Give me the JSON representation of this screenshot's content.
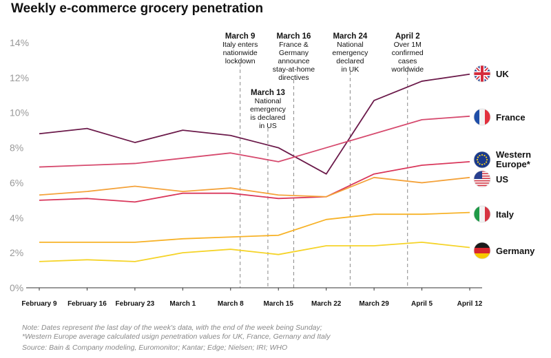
{
  "header": {
    "title": "Weekly e-commerce grocery penetration"
  },
  "colors": {
    "UK": "#6b1a4a",
    "France": "#d64a6e",
    "Western Europe*": "#d9365a",
    "US": "#f4a23a",
    "Italy": "#f7b227",
    "Germany": "#f5d327",
    "axis": "#333333",
    "annotation_line": "#888888"
  },
  "chart_data": {
    "type": "line",
    "title": "Weekly e-commerce grocery penetration",
    "categories": [
      "February 9",
      "February 16",
      "February 23",
      "March 1",
      "March 8",
      "March 15",
      "March 22",
      "March 29",
      "April 5",
      "April 12"
    ],
    "ylim": [
      0,
      14
    ],
    "yticks": [
      "0%",
      "2%",
      "4%",
      "6%",
      "8%",
      "10%",
      "12%",
      "14%"
    ],
    "ytick_values": [
      0,
      2,
      4,
      6,
      8,
      10,
      12,
      14
    ],
    "grid": false,
    "series": [
      {
        "name": "UK",
        "icon": "uk-flag-icon",
        "values": [
          8.8,
          9.1,
          8.3,
          9.0,
          8.7,
          8.0,
          6.5,
          10.7,
          11.8,
          12.2
        ]
      },
      {
        "name": "France",
        "icon": "france-flag-icon",
        "values": [
          6.9,
          7.0,
          7.1,
          7.4,
          7.7,
          7.2,
          8.0,
          8.8,
          9.6,
          9.8
        ]
      },
      {
        "name": "Western Europe*",
        "icon": "eu-flag-icon",
        "values": [
          5.0,
          5.1,
          4.9,
          5.4,
          5.4,
          5.1,
          5.2,
          6.5,
          7.0,
          7.2
        ]
      },
      {
        "name": "US",
        "icon": "us-flag-icon",
        "values": [
          5.3,
          5.5,
          5.8,
          5.5,
          5.7,
          5.3,
          5.2,
          6.3,
          6.0,
          6.3
        ]
      },
      {
        "name": "Italy",
        "icon": "italy-flag-icon",
        "values": [
          2.6,
          2.6,
          2.6,
          2.8,
          2.9,
          3.0,
          3.9,
          4.2,
          4.2,
          4.3
        ]
      },
      {
        "name": "Germany",
        "icon": "germany-flag-icon",
        "values": [
          1.5,
          1.6,
          1.5,
          2.0,
          2.2,
          1.9,
          2.4,
          2.4,
          2.6,
          2.3
        ]
      }
    ],
    "annotations": [
      {
        "x": 4.2,
        "lines": [
          "March 9",
          "Italy enters",
          "nationwide",
          "lockdown"
        ]
      },
      {
        "x": 4.78,
        "lines": [
          "March 13",
          "National",
          "emergency",
          "is declared",
          "in US"
        ]
      },
      {
        "x": 5.32,
        "lines": [
          "March 16",
          "France &",
          "Germany",
          "announce",
          "stay-at-home",
          "directives"
        ]
      },
      {
        "x": 6.5,
        "lines": [
          "March 24",
          "National",
          "emergency",
          "declared",
          "in UK"
        ]
      },
      {
        "x": 7.7,
        "lines": [
          "April 2",
          "Over 1M",
          "confirmed",
          "cases",
          "worldwide"
        ]
      }
    ]
  },
  "notes": {
    "line1": "Note: Dates represent the last day of the week's data, with the end of the week being Sunday;",
    "line2": "*Western Europe average calculated usign penetration values for UK, France, Gernany and Italy",
    "source": "Source: Bain & Company modeling, Euromonitor; Kantar; Edge; Nielsen; IRI; WHO"
  }
}
